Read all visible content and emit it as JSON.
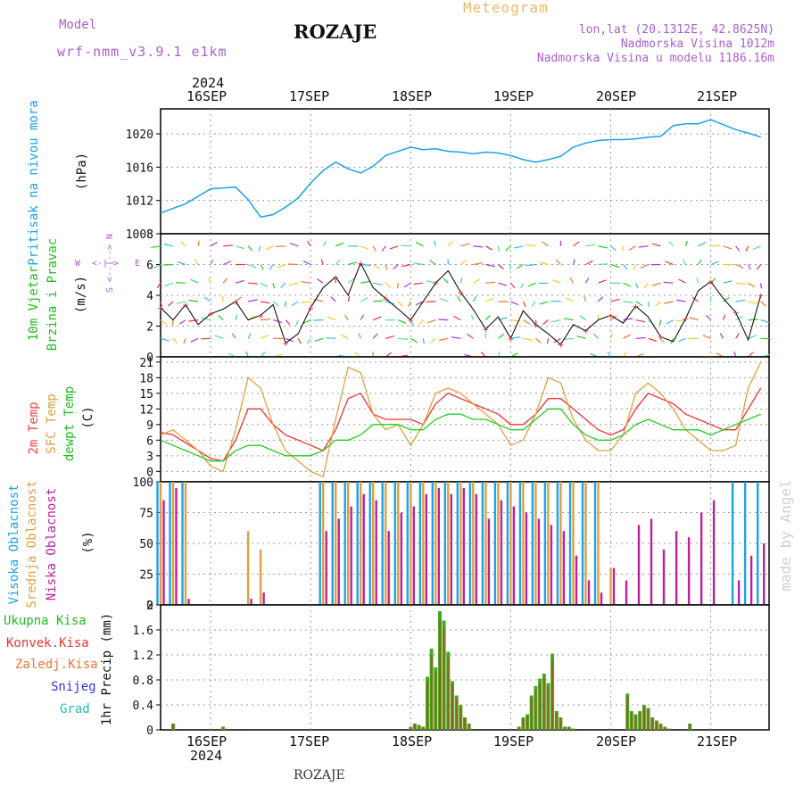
{
  "header": {
    "model_label": "Model",
    "model_name": "wrf-nmm_v3.9.1 e1km",
    "station": "ROZAJE",
    "meteogram": "Meteogram",
    "lonlat": "lon,lat (20.1312E, 42.8625N)",
    "elev": "Nadmorska Visina 1012m",
    "elev_model": "Nadmorska Visina u modelu 1186.16m"
  },
  "footer": {
    "station": "ROZAJE",
    "watermark": "made by Angel"
  },
  "axis": {
    "year": "2024",
    "days": [
      "16SEP",
      "17SEP",
      "18SEP",
      "19SEP",
      "20SEP",
      "21SEP"
    ]
  },
  "panels": {
    "pressure": {
      "title": "Pritisak na nivou mora",
      "unit": "(hPa)",
      "color": "#1aa3e8"
    },
    "wind": {
      "title1": "10m Vjetar",
      "title2": "Brzina i Pravac",
      "unit": "(m/s)",
      "compass": {
        "n": "N",
        "s": "S",
        "w": "W",
        "e": "E"
      }
    },
    "temp": {
      "t2m": "2m Temp",
      "sfc": "SFC Temp",
      "dew": "dewpt Temp",
      "unit": "(C)"
    },
    "cloud": {
      "high": "Visoka Oblacnost",
      "mid": "Srednja Oblacnost",
      "low": "Niska Oblacnost",
      "unit": "(%)"
    },
    "precip": {
      "ylabel": "1hr Precip (mm)",
      "legend": [
        "Ukupna Kisa",
        "Konvek.Kisa",
        "Zaledj.Kisa",
        "Snijeg",
        "Grad"
      ],
      "legend_colors": [
        "#22bb22",
        "#ee3333",
        "#ee7733",
        "#3333dd",
        "#22bbbb"
      ]
    }
  },
  "chart_data": [
    {
      "type": "line",
      "title": "Pritisak na nivou mora",
      "ylabel": "(hPa)",
      "ylim": [
        1008,
        1023
      ],
      "yticks": [
        1008,
        1012,
        1016,
        1020
      ],
      "x_unit": "hours from 2024-09-15 12UTC",
      "series": [
        {
          "name": "Pritisak na nivou mora",
          "x": [
            0,
            6,
            12,
            18,
            21,
            24,
            27,
            30,
            33,
            36,
            39,
            42,
            45,
            48,
            51,
            54,
            57,
            60,
            63,
            66,
            69,
            72,
            75,
            78,
            81,
            84,
            87,
            90,
            93,
            96,
            99,
            102,
            105,
            108,
            111,
            114,
            117,
            120,
            123,
            126,
            129,
            132,
            135,
            138,
            141,
            144
          ],
          "y": [
            1010.5,
            1011.6,
            1013.4,
            1013.6,
            1012.1,
            1010.0,
            1010.3,
            1011.2,
            1012.3,
            1014.1,
            1015.6,
            1016.6,
            1015.8,
            1015.3,
            1016.1,
            1017.4,
            1017.9,
            1018.4,
            1018.1,
            1018.2,
            1017.9,
            1017.8,
            1017.6,
            1017.8,
            1017.7,
            1017.4,
            1016.9,
            1016.6,
            1016.9,
            1017.3,
            1018.4,
            1018.9,
            1019.2,
            1019.3,
            1019.3,
            1019.4,
            1019.6,
            1019.7,
            1021.0,
            1021.2,
            1021.2,
            1021.7,
            1021.1,
            1020.5,
            1020.1,
            1019.6
          ]
        }
      ]
    },
    {
      "type": "line",
      "title": "10m Vjetar Brzina i Pravac",
      "ylabel": "(m/s)",
      "ylim": [
        0,
        8
      ],
      "yticks": [
        0,
        2,
        4,
        6,
        8
      ],
      "series": [
        {
          "name": "10m Vjetar",
          "x": [
            0,
            3,
            6,
            9,
            12,
            15,
            18,
            21,
            24,
            27,
            30,
            33,
            36,
            39,
            42,
            45,
            48,
            51,
            54,
            57,
            60,
            63,
            66,
            69,
            72,
            75,
            78,
            81,
            84,
            87,
            90,
            93,
            96,
            99,
            102,
            105,
            108,
            111,
            114,
            117,
            120,
            123,
            126,
            129,
            132,
            135,
            138,
            141,
            144
          ],
          "y": [
            3.2,
            2.4,
            3.4,
            2.1,
            2.8,
            3.1,
            3.6,
            2.4,
            2.7,
            3.4,
            0.9,
            1.5,
            3.2,
            4.5,
            5.2,
            4.0,
            6.1,
            4.5,
            3.8,
            3.1,
            2.4,
            3.6,
            4.8,
            5.6,
            4.2,
            3.1,
            1.8,
            2.6,
            1.2,
            3.0,
            2.1,
            1.5,
            0.8,
            2.1,
            1.7,
            2.4,
            2.7,
            2.2,
            3.3,
            2.6,
            1.3,
            1.0,
            2.5,
            4.3,
            4.9,
            3.8,
            2.9,
            1.1,
            4.0
          ]
        }
      ]
    },
    {
      "type": "line",
      "ylabel": "(C)",
      "ylim": [
        -2,
        22
      ],
      "yticks": [
        0,
        3,
        6,
        9,
        12,
        15,
        18,
        21
      ],
      "x": [
        0,
        3,
        6,
        9,
        12,
        15,
        18,
        21,
        24,
        27,
        30,
        33,
        36,
        39,
        42,
        45,
        48,
        51,
        54,
        57,
        60,
        63,
        66,
        69,
        72,
        75,
        78,
        81,
        84,
        87,
        90,
        93,
        96,
        99,
        102,
        105,
        108,
        111,
        114,
        117,
        120,
        123,
        126,
        129,
        132,
        135,
        138,
        141,
        144
      ],
      "series": [
        {
          "name": "2m Temp",
          "y": [
            7.5,
            7.0,
            5.5,
            4.0,
            2.5,
            2.0,
            6.0,
            12.0,
            12.0,
            9.0,
            7.0,
            6.0,
            5.0,
            4.0,
            8.0,
            14.0,
            15.0,
            11.0,
            10.0,
            10.0,
            10.0,
            9.0,
            13.0,
            15.0,
            14.0,
            13.0,
            12.0,
            11.0,
            9.0,
            9.0,
            11.0,
            14.0,
            14.0,
            12.0,
            10.0,
            8.0,
            7.0,
            8.0,
            12.0,
            15.0,
            14.0,
            13.0,
            11.0,
            10.0,
            9.0,
            8.0,
            8.0,
            12.0,
            16.0
          ]
        },
        {
          "name": "SFC Temp",
          "y": [
            7.0,
            8.0,
            6.0,
            4.0,
            1.0,
            0.0,
            8.0,
            18.0,
            16.0,
            9.0,
            4.0,
            2.0,
            0.0,
            -1.0,
            10.0,
            20.0,
            19.0,
            11.0,
            8.0,
            9.0,
            5.0,
            9.0,
            15.0,
            16.0,
            15.0,
            13.0,
            11.0,
            9.0,
            5.0,
            6.0,
            11.0,
            18.0,
            17.0,
            10.0,
            6.0,
            4.0,
            4.0,
            7.0,
            15.0,
            17.0,
            15.0,
            12.0,
            8.0,
            6.0,
            4.0,
            4.0,
            5.0,
            16.0,
            21.0
          ]
        },
        {
          "name": "dewpt Temp",
          "y": [
            6.0,
            5.0,
            4.0,
            3.0,
            2.0,
            2.0,
            4.0,
            5.0,
            5.0,
            4.0,
            3.0,
            3.0,
            3.0,
            4.0,
            6.0,
            6.0,
            7.0,
            9.0,
            9.0,
            9.0,
            8.0,
            8.0,
            10.0,
            11.0,
            11.0,
            10.0,
            10.0,
            9.0,
            8.0,
            8.0,
            10.0,
            12.0,
            12.0,
            9.0,
            7.0,
            6.0,
            6.0,
            7.0,
            9.0,
            10.0,
            9.0,
            8.0,
            8.0,
            8.0,
            7.0,
            8.0,
            9.0,
            10.0,
            11.0
          ]
        }
      ]
    },
    {
      "type": "bar",
      "ylabel": "(%)",
      "ylim": [
        0,
        100
      ],
      "yticks": [
        0,
        25,
        50,
        75,
        100
      ],
      "x": [
        0,
        3,
        6,
        9,
        12,
        15,
        18,
        21,
        24,
        27,
        30,
        33,
        36,
        39,
        42,
        45,
        48,
        51,
        54,
        57,
        60,
        63,
        66,
        69,
        72,
        75,
        78,
        81,
        84,
        87,
        90,
        93,
        96,
        99,
        102,
        105,
        108,
        111,
        114,
        117,
        120,
        123,
        126,
        129,
        132,
        135,
        138,
        141,
        144
      ],
      "series": [
        {
          "name": "Visoka Oblacnost",
          "values": [
            100,
            100,
            100,
            0,
            0,
            0,
            0,
            0,
            0,
            0,
            0,
            0,
            0,
            100,
            100,
            100,
            100,
            100,
            100,
            100,
            100,
            100,
            100,
            100,
            100,
            100,
            100,
            100,
            100,
            100,
            100,
            100,
            100,
            100,
            100,
            100,
            0,
            0,
            0,
            0,
            0,
            0,
            0,
            0,
            0,
            0,
            100,
            100,
            100
          ]
        },
        {
          "name": "Srednja Oblacnost",
          "values": [
            100,
            100,
            100,
            0,
            0,
            0,
            0,
            60,
            45,
            0,
            0,
            0,
            0,
            100,
            100,
            100,
            100,
            100,
            100,
            100,
            100,
            100,
            100,
            100,
            100,
            100,
            100,
            100,
            100,
            100,
            100,
            100,
            100,
            100,
            100,
            100,
            30,
            0,
            0,
            0,
            0,
            0,
            0,
            0,
            0,
            0,
            0,
            0,
            0
          ]
        },
        {
          "name": "Niska Oblacnost",
          "values": [
            85,
            95,
            5,
            0,
            0,
            0,
            0,
            5,
            10,
            0,
            0,
            0,
            0,
            60,
            70,
            80,
            90,
            85,
            60,
            75,
            80,
            90,
            95,
            90,
            95,
            90,
            70,
            85,
            80,
            75,
            70,
            65,
            60,
            40,
            20,
            10,
            30,
            20,
            65,
            70,
            45,
            60,
            55,
            75,
            85,
            0,
            20,
            40,
            50
          ]
        }
      ]
    },
    {
      "type": "bar",
      "ylabel": "1hr Precip (mm)",
      "ylim": [
        0,
        2
      ],
      "yticks": [
        0,
        0.4,
        0.8,
        1.2,
        1.6,
        2
      ],
      "series": [
        {
          "name": "Ukupna Kisa",
          "x": [
            3,
            15,
            60,
            61,
            62,
            63,
            64,
            65,
            66,
            67,
            68,
            69,
            70,
            71,
            72,
            73,
            74,
            86,
            87,
            88,
            89,
            90,
            91,
            92,
            93,
            94,
            95,
            96,
            97,
            98,
            99,
            112,
            113,
            114,
            115,
            116,
            117,
            118,
            119,
            120,
            121,
            122,
            127
          ],
          "values": [
            0.1,
            0.05,
            0.05,
            0.1,
            0.08,
            0.05,
            0.85,
            1.3,
            1.0,
            1.9,
            1.75,
            1.25,
            0.78,
            0.55,
            0.4,
            0.2,
            0.1,
            0.05,
            0.2,
            0.25,
            0.55,
            0.7,
            0.82,
            0.9,
            0.75,
            1.22,
            0.3,
            0.2,
            0.05,
            0.05,
            0.02,
            0.58,
            0.3,
            0.25,
            0.3,
            0.4,
            0.35,
            0.2,
            0.15,
            0.1,
            0.05,
            0.02,
            0.1
          ]
        }
      ]
    }
  ]
}
